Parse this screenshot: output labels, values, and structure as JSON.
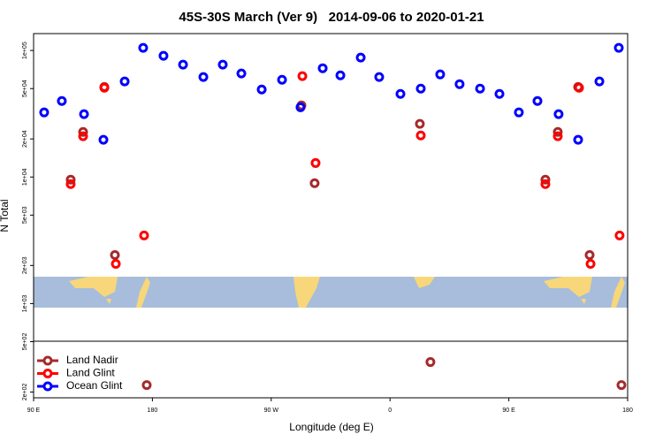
{
  "chart_data": {
    "type": "scatter",
    "title": "45S-30S March (Ver 9)   2014-09-06 to 2020-01-21",
    "x_label": "Longitude (deg E)",
    "y_label": "N Total",
    "log_y": true,
    "legend": "lower left",
    "xlim": [
      90,
      540
    ],
    "ylim": [
      180,
      136000
    ],
    "xticks": [
      {
        "value": 90,
        "label": "90 E"
      },
      180,
      {
        "value": 270,
        "label": "90 W"
      },
      {
        "value": 360,
        "label": "0"
      },
      {
        "value": 450,
        "label": "90 E"
      },
      {
        "value": 540,
        "label": "180"
      }
    ],
    "yticks": [
      {
        "value": 200,
        "label": "2e+02"
      },
      {
        "value": 500,
        "label": "5e+02"
      },
      {
        "value": 1000,
        "label": "1e+03"
      },
      {
        "value": 2000,
        "label": "2e+03"
      },
      {
        "value": 5000,
        "label": "5e+03"
      },
      {
        "value": 10000,
        "label": "1e+04"
      },
      {
        "value": 20000,
        "label": "2e+04"
      },
      {
        "value": 50000,
        "label": "5e+04"
      },
      {
        "value": 100000,
        "label": "1e+05"
      }
    ],
    "series": [
      {
        "name": "Land Nadir",
        "color": "#a52a2a",
        "x": [
          118.1,
          127.5,
          143.6,
          151.6,
          175.7,
          292.9,
          302.9,
          382.6,
          390.6,
          477.7,
          487.1,
          502.5,
          511.2,
          535.3
        ],
        "values": [
          9530,
          22700,
          51500,
          2420,
          227,
          36800,
          8930,
          26300,
          345,
          9530,
          22700,
          51500,
          2420,
          227
        ]
      },
      {
        "name": "Land Glint",
        "color": "#ff0000",
        "x": [
          118.1,
          127.5,
          143.6,
          152.3,
          173.7,
          293.6,
          303.6,
          383.3,
          477.7,
          487.1,
          503.2,
          511.9,
          533.9
        ],
        "values": [
          8790,
          21000,
          50800,
          2060,
          3450,
          62700,
          12900,
          21300,
          8790,
          21000,
          50800,
          2060,
          3450
        ]
      },
      {
        "name": "Ocean Glint",
        "color": "#0000ff",
        "x": [
          98,
          111.4,
          128.2,
          142.9,
          159,
          173,
          188.4,
          203.2,
          218.6,
          233.3,
          247.4,
          262.8,
          278.2,
          292.2,
          309,
          322.4,
          337.8,
          351.8,
          367.9,
          383.3,
          398,
          412.7,
          428.2,
          442.9,
          457.6,
          471.7,
          487.7,
          502.5,
          518.6,
          533.3
        ],
        "values": [
          32400,
          39900,
          31400,
          19700,
          56900,
          105000,
          90800,
          77300,
          61700,
          77300,
          65800,
          49200,
          58700,
          35600,
          72400,
          63600,
          87900,
          61700,
          45400,
          50000,
          64700,
          54200,
          50000,
          45400,
          32400,
          39900,
          31400,
          19700,
          56900,
          105000
        ]
      }
    ]
  }
}
